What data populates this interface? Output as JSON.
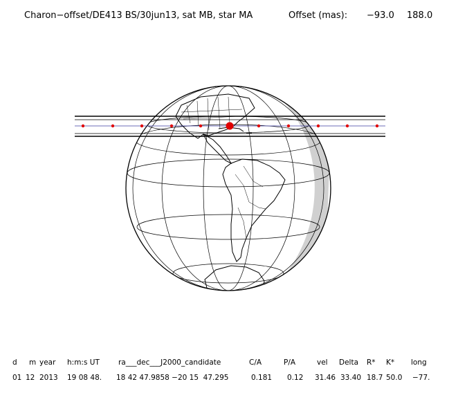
{
  "header": {
    "label": "Charon−offset/DE413 BS/30jun13, sat MB, star MA",
    "offset_label": "Offset (mas):",
    "offset_x": "−93.0",
    "offset_y": "188.0"
  },
  "table": {
    "columns": [
      "d",
      "m",
      "year",
      "h:m:s UT",
      "ra___dec___J2000_candidate",
      "C/A",
      "P/A",
      "vel",
      "Delta",
      "R*",
      "K*",
      "long"
    ],
    "row": [
      "01",
      "12",
      "2013",
      "19 08 48.",
      "18 42 47.9858 −20 15  47.295",
      "0.181",
      "0.12",
      "31.46",
      "33.40",
      "18.7",
      "50.0",
      "−77."
    ]
  },
  "map": {
    "projection": "orthographic",
    "center_lon": -77,
    "path_color": "#000000",
    "center_line_color": "#3a3aa0",
    "dot_color": "#e00000",
    "night_shade": "#d0d0d0",
    "central_point": "Caribbean"
  }
}
